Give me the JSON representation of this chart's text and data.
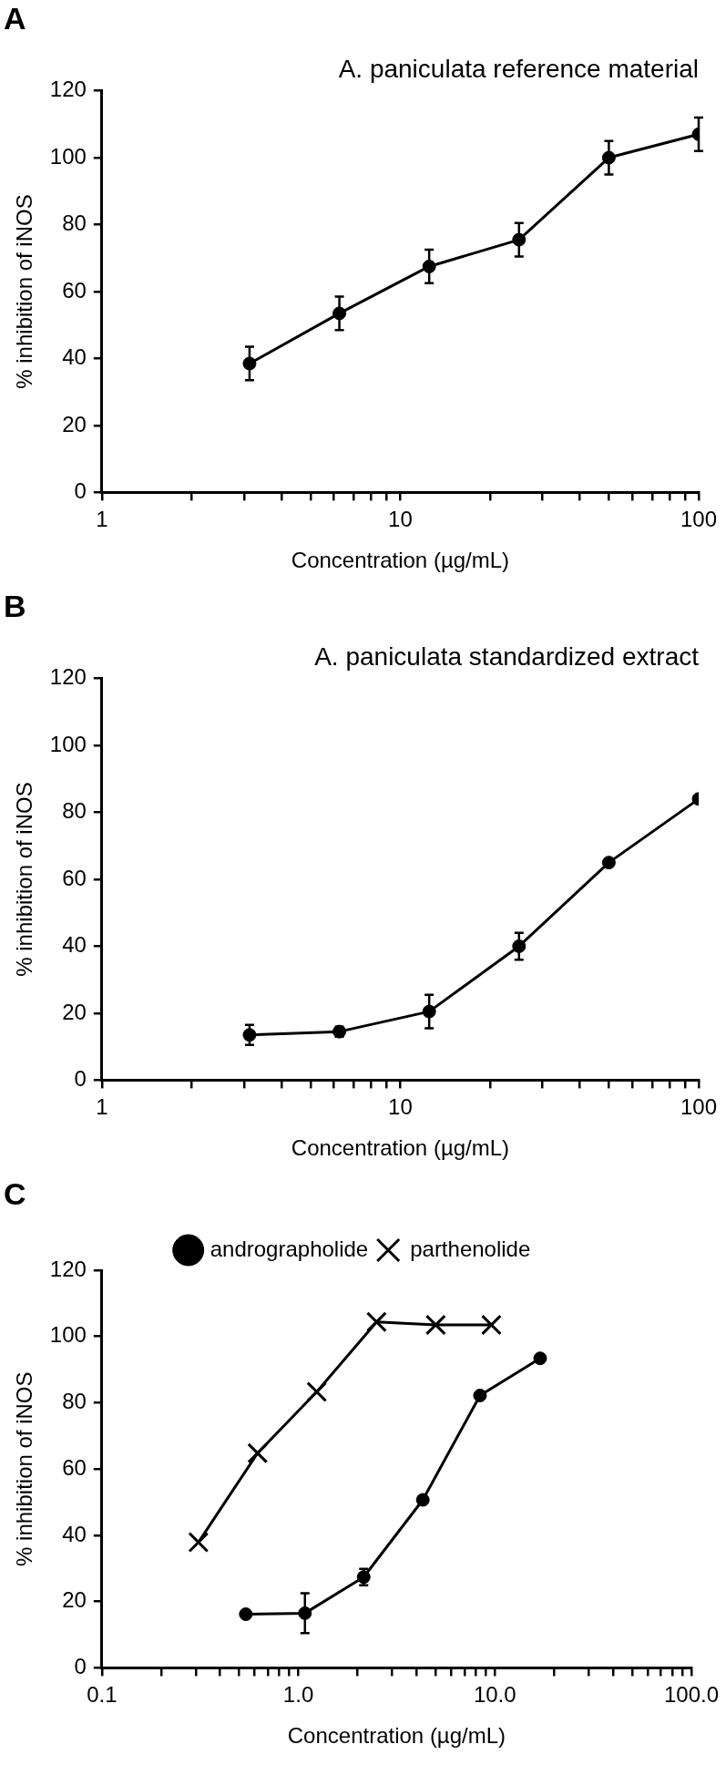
{
  "chart_data": [
    {
      "type": "line",
      "title": "A. paniculata reference material",
      "xlabel": "Concentration (µg/mL)",
      "ylabel": "% inhibition of iNOS",
      "annotations": [
        "A"
      ],
      "log": "x",
      "marker": "circle",
      "line_style": "solid",
      "legend": false,
      "xlim": [
        1,
        100
      ],
      "xticks": [
        1,
        {
          "value": 2,
          "label": null
        },
        {
          "value": 3,
          "label": null
        },
        {
          "value": 4,
          "label": null
        },
        {
          "value": 5,
          "label": null
        },
        {
          "value": 6,
          "label": null
        },
        {
          "value": 7,
          "label": null
        },
        {
          "value": 8,
          "label": null
        },
        {
          "value": 9,
          "label": null
        },
        10,
        {
          "value": 20,
          "label": null
        },
        {
          "value": 30,
          "label": null
        },
        {
          "value": 40,
          "label": null
        },
        {
          "value": 50,
          "label": null
        },
        {
          "value": 60,
          "label": null
        },
        {
          "value": 70,
          "label": null
        },
        {
          "value": 80,
          "label": null
        },
        {
          "value": 90,
          "label": null
        },
        100
      ],
      "ylim": [
        0,
        120
      ],
      "yticks": [
        0,
        20,
        40,
        60,
        80,
        100,
        120
      ],
      "x": [
        3.125,
        6.25,
        12.5,
        25,
        50,
        100
      ],
      "series": [
        {
          "color": "#000000",
          "values": [
            38.5,
            53.5,
            67.5,
            75.5,
            100,
            107
          ],
          "errors": [
            5,
            5,
            5,
            5,
            5,
            5
          ]
        }
      ]
    },
    {
      "type": "line",
      "title": "A. paniculata standardized extract",
      "xlabel": "Concentration (µg/mL)",
      "ylabel": "% inhibition of iNOS",
      "annotations": [
        "B"
      ],
      "log": "x",
      "marker": "circle",
      "line_style": "solid",
      "legend": false,
      "xlim": [
        1,
        100
      ],
      "xticks": [
        1,
        {
          "value": 2,
          "label": null
        },
        {
          "value": 3,
          "label": null
        },
        {
          "value": 4,
          "label": null
        },
        {
          "value": 5,
          "label": null
        },
        {
          "value": 6,
          "label": null
        },
        {
          "value": 7,
          "label": null
        },
        {
          "value": 8,
          "label": null
        },
        {
          "value": 9,
          "label": null
        },
        10,
        {
          "value": 20,
          "label": null
        },
        {
          "value": 30,
          "label": null
        },
        {
          "value": 40,
          "label": null
        },
        {
          "value": 50,
          "label": null
        },
        {
          "value": 60,
          "label": null
        },
        {
          "value": 70,
          "label": null
        },
        {
          "value": 80,
          "label": null
        },
        {
          "value": 90,
          "label": null
        },
        100
      ],
      "ylim": [
        0,
        120
      ],
      "yticks": [
        0,
        20,
        40,
        60,
        80,
        100,
        120
      ],
      "x": [
        3.125,
        6.25,
        12.5,
        25,
        50,
        100
      ],
      "series": [
        {
          "color": "#000000",
          "values": [
            13.5,
            14.5,
            20.5,
            40,
            65,
            84
          ],
          "errors": [
            3,
            1.5,
            5,
            4,
            null,
            null
          ]
        }
      ]
    },
    {
      "type": "line",
      "xlabel": "Concentration (µg/mL)",
      "ylabel": "% inhibition of iNOS",
      "annotations": [
        "C"
      ],
      "log": "x",
      "line_style": "solid",
      "legend": "top",
      "xlim": [
        0.1,
        100
      ],
      "xticks": [
        0.1,
        {
          "value": 0.2,
          "label": null
        },
        {
          "value": 0.3,
          "label": null
        },
        {
          "value": 0.4,
          "label": null
        },
        {
          "value": 0.5,
          "label": null
        },
        {
          "value": 0.6,
          "label": null
        },
        {
          "value": 0.7,
          "label": null
        },
        {
          "value": 0.8,
          "label": null
        },
        {
          "value": 0.9,
          "label": null
        },
        {
          "value": 1,
          "label": "1.0"
        },
        {
          "value": 2,
          "label": null
        },
        {
          "value": 3,
          "label": null
        },
        {
          "value": 4,
          "label": null
        },
        {
          "value": 5,
          "label": null
        },
        {
          "value": 6,
          "label": null
        },
        {
          "value": 7,
          "label": null
        },
        {
          "value": 8,
          "label": null
        },
        {
          "value": 9,
          "label": null
        },
        {
          "value": 10,
          "label": "10.0"
        },
        {
          "value": 20,
          "label": null
        },
        {
          "value": 30,
          "label": null
        },
        {
          "value": 40,
          "label": null
        },
        {
          "value": 50,
          "label": null
        },
        {
          "value": 60,
          "label": null
        },
        {
          "value": 70,
          "label": null
        },
        {
          "value": 80,
          "label": null
        },
        {
          "value": 90,
          "label": null
        },
        {
          "value": 100,
          "label": "100.0"
        }
      ],
      "ylim": [
        0,
        120
      ],
      "yticks": [
        0,
        20,
        40,
        60,
        80,
        100,
        120
      ],
      "series": [
        {
          "name": "andrographolide",
          "color": "#000000",
          "marker": "circle",
          "x": [
            0.54,
            1.08,
            2.15,
            4.3,
            8.4,
            17
          ],
          "values": [
            16.2,
            16.5,
            27.4,
            50.7,
            82.2,
            93.4
          ],
          "errors": [
            null,
            6,
            2.5,
            null,
            null,
            null
          ]
        },
        {
          "name": "parthenolide",
          "color": "#000000",
          "marker": "cross",
          "x": [
            0.31,
            0.62,
            1.24,
            2.5,
            5,
            9.6
          ],
          "values": [
            37.9,
            64.8,
            83.3,
            104.4,
            103.5,
            103.5
          ]
        }
      ]
    }
  ]
}
